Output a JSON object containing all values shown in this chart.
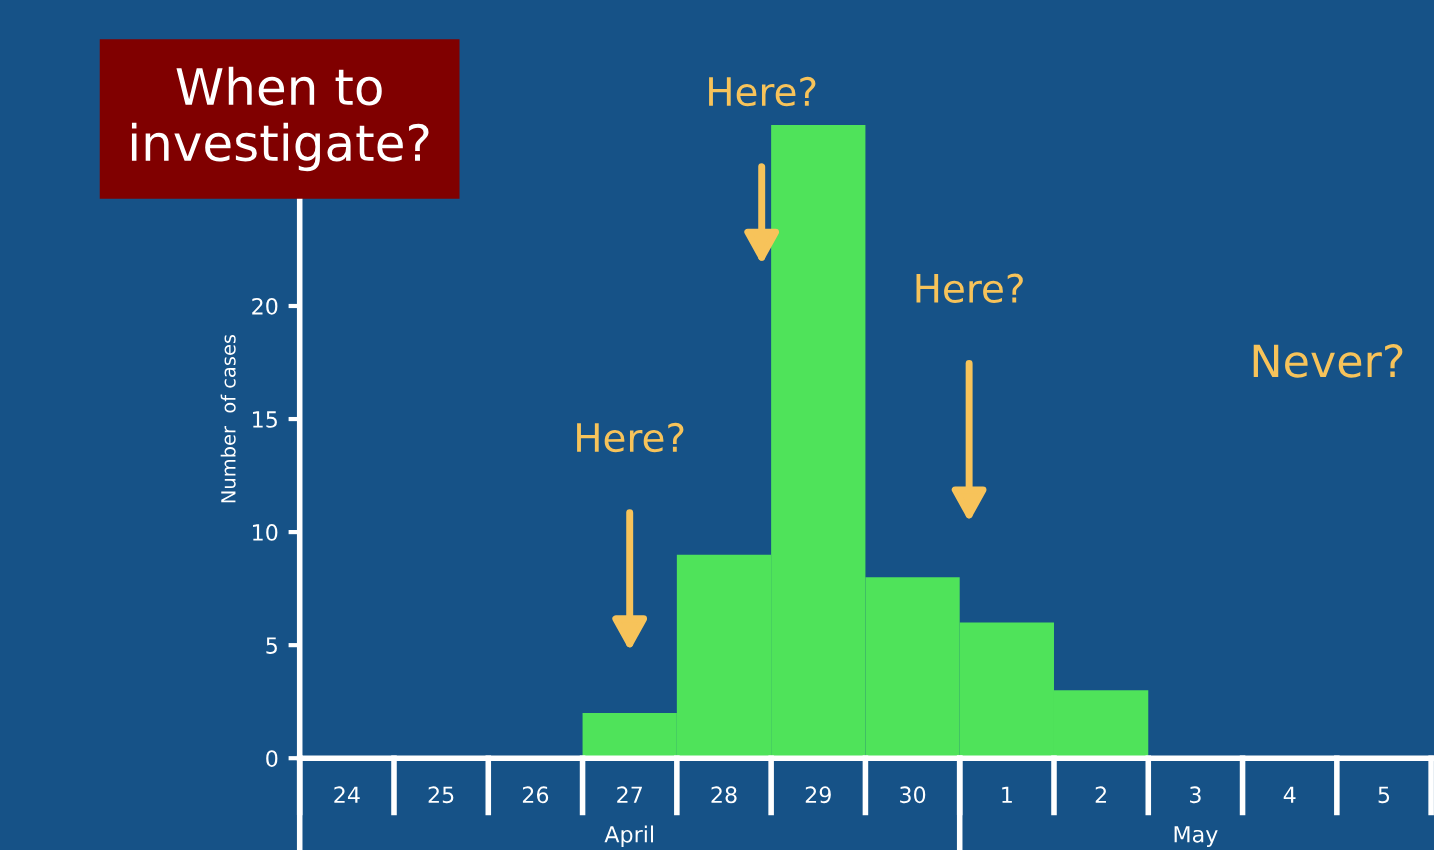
{
  "chart_data": {
    "type": "bar",
    "title": "When to\ninvestigate?",
    "ylabel": "Number  of cases",
    "categories": [
      "24",
      "25",
      "26",
      "27",
      "28",
      "29",
      "30",
      "1",
      "2",
      "3",
      "4",
      "5"
    ],
    "values": [
      0,
      0,
      0,
      2,
      9,
      28,
      8,
      6,
      3,
      0,
      0,
      0
    ],
    "color": "#4fe35a",
    "ylim": [
      0,
      30
    ],
    "yticks": [
      0,
      5,
      10,
      15,
      20
    ],
    "grid": false,
    "legend": false,
    "annotations": [
      "Here?",
      "Here?",
      "Here?",
      "Never?",
      "April",
      "May"
    ]
  }
}
